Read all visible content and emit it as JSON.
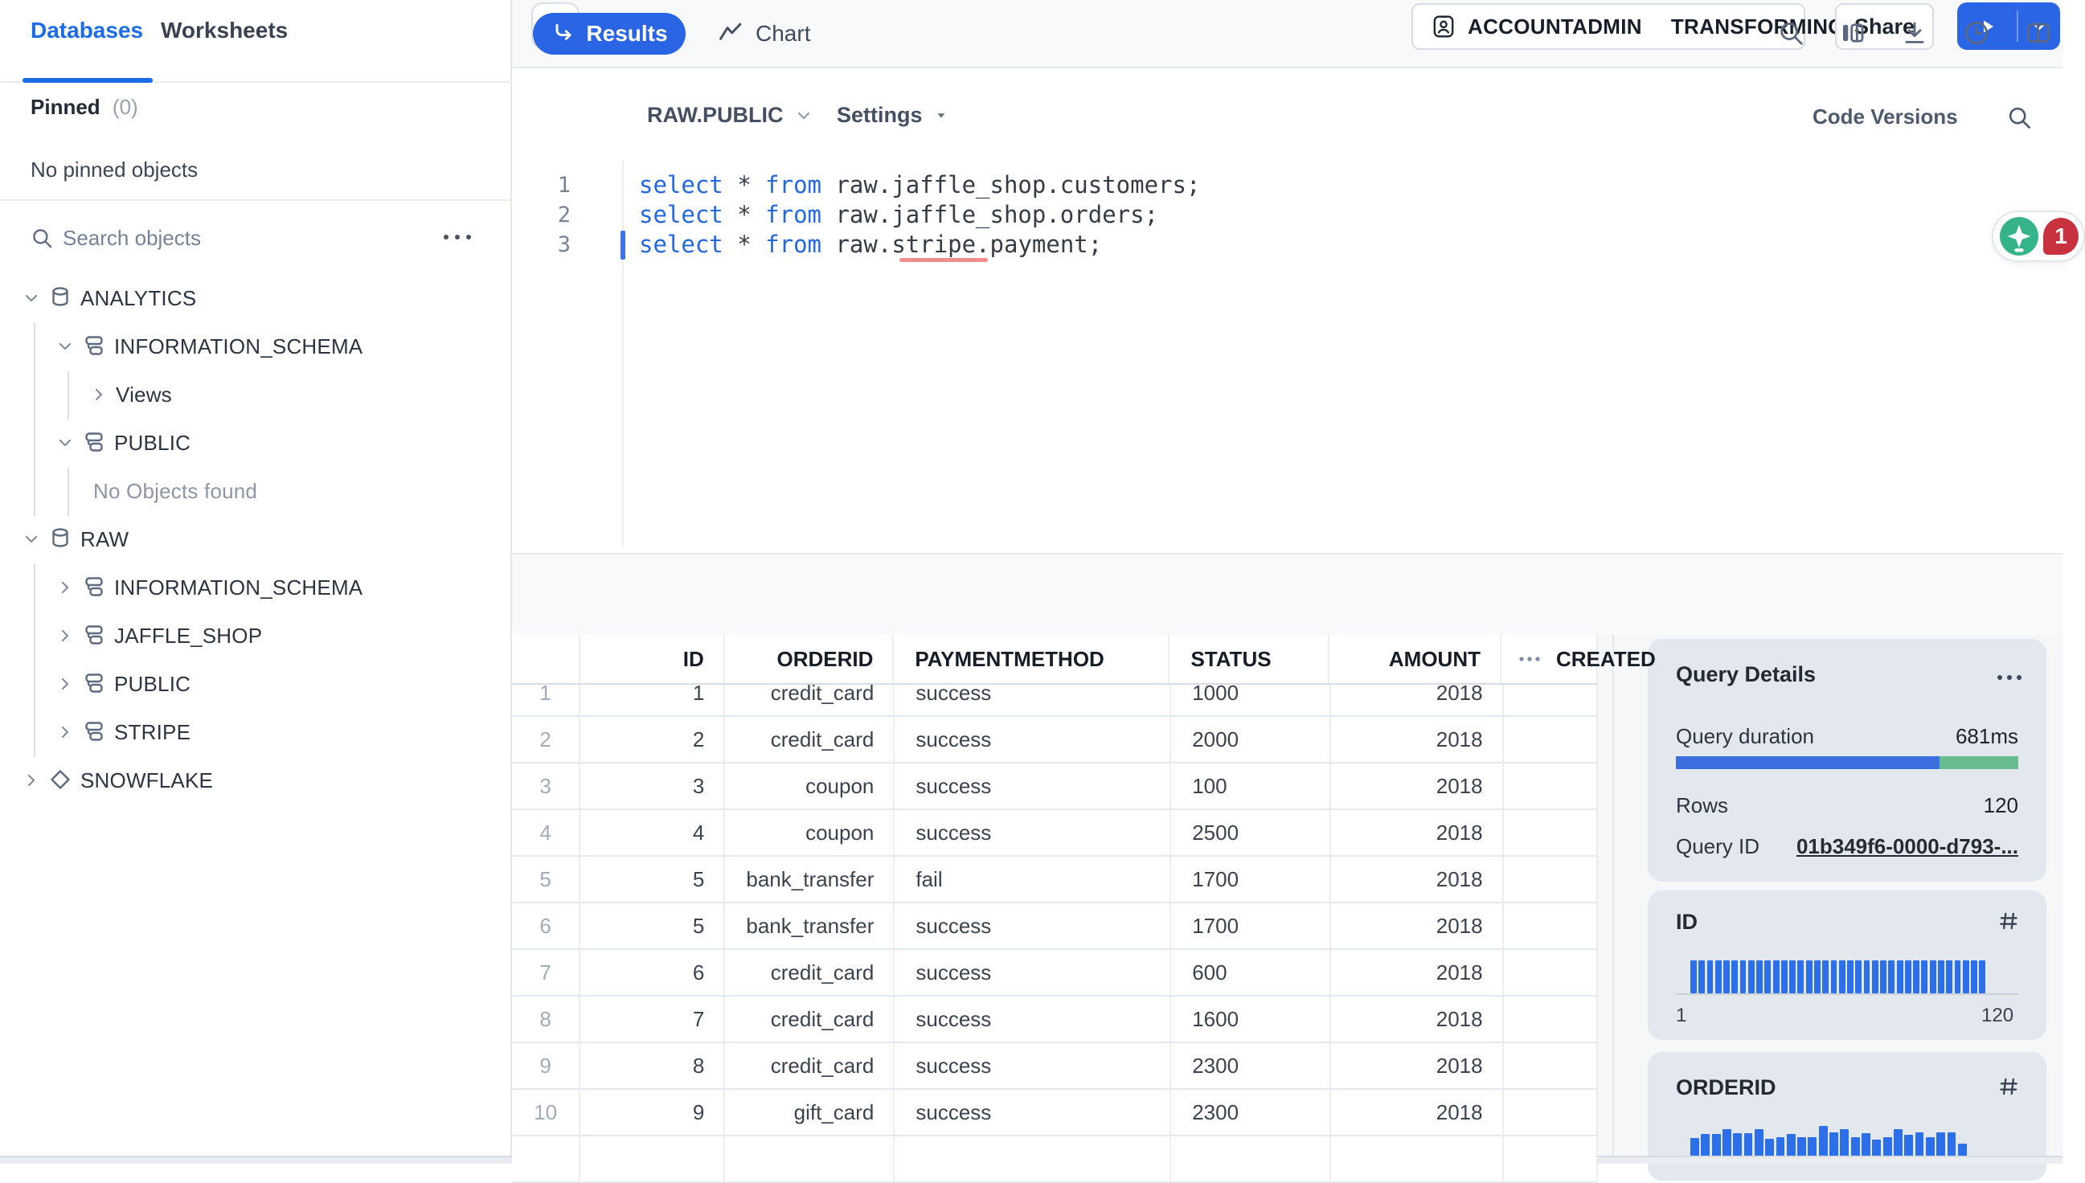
{
  "sidebar": {
    "tabs": [
      {
        "label": "Databases"
      },
      {
        "label": "Worksheets"
      }
    ],
    "active_tab": "Databases",
    "pinned_label": "Pinned",
    "pinned_count": "(0)",
    "pinned_empty": "No pinned objects",
    "search_placeholder": "Search objects",
    "tree": [
      {
        "label": "ANALYTICS",
        "icon": "database",
        "level": 0,
        "state": "expanded"
      },
      {
        "label": "INFORMATION_SCHEMA",
        "icon": "schema",
        "level": 1,
        "state": "expanded"
      },
      {
        "label": "Views",
        "icon": "",
        "level": 2,
        "state": "collapsed"
      },
      {
        "label": "PUBLIC",
        "icon": "schema",
        "level": 1,
        "state": "expanded"
      },
      {
        "label": "No Objects found",
        "icon": "",
        "level": 2,
        "state": "none",
        "muted": true
      },
      {
        "label": "RAW",
        "icon": "database",
        "level": 0,
        "state": "expanded"
      },
      {
        "label": "INFORMATION_SCHEMA",
        "icon": "schema",
        "level": 1,
        "state": "collapsed"
      },
      {
        "label": "JAFFLE_SHOP",
        "icon": "schema",
        "level": 1,
        "state": "collapsed"
      },
      {
        "label": "PUBLIC",
        "icon": "schema",
        "level": 1,
        "state": "collapsed"
      },
      {
        "label": "STRIPE",
        "icon": "schema",
        "level": 1,
        "state": "collapsed"
      },
      {
        "label": "SNOWFLAKE",
        "icon": "snowflake",
        "level": 0,
        "state": "collapsed"
      }
    ]
  },
  "topbar": {
    "role": "ACCOUNTADMIN",
    "warehouse": "TRANSFORMING",
    "share_label": "Share"
  },
  "worksheet": {
    "context": "RAW.PUBLIC",
    "settings_label": "Settings",
    "code_versions_label": "Code Versions",
    "notification_count": "1"
  },
  "editor": {
    "lines": [
      {
        "no": "1",
        "tokens": [
          {
            "t": "kw",
            "s": "select"
          },
          {
            "t": "pl",
            "s": " * "
          },
          {
            "t": "kw",
            "s": "from"
          },
          {
            "t": "pl",
            "s": " raw.jaffle_shop.customers;"
          }
        ]
      },
      {
        "no": "2",
        "tokens": [
          {
            "t": "kw",
            "s": "select"
          },
          {
            "t": "pl",
            "s": " * "
          },
          {
            "t": "kw",
            "s": "from"
          },
          {
            "t": "pl",
            "s": " raw.jaffle_shop.orders;"
          }
        ]
      },
      {
        "no": "3",
        "tokens": [
          {
            "t": "kw",
            "s": "select"
          },
          {
            "t": "pl",
            "s": " * "
          },
          {
            "t": "kw",
            "s": "from"
          },
          {
            "t": "pl",
            "s": " raw."
          },
          {
            "t": "err",
            "s": "stripe"
          },
          {
            "t": "pl",
            "s": ".payment;"
          }
        ]
      }
    ]
  },
  "results": {
    "tab_results": "Results",
    "tab_chart": "Chart",
    "table": {
      "columns": [
        {
          "label": "",
          "align": "center"
        },
        {
          "label": "ID",
          "align": "right"
        },
        {
          "label": "ORDERID",
          "align": "right"
        },
        {
          "label": "PAYMENTMETHOD",
          "align": "left"
        },
        {
          "label": "STATUS",
          "align": "left"
        },
        {
          "label": "AMOUNT",
          "align": "right"
        },
        {
          "label": "CREATED",
          "align": "left",
          "clipped": true
        }
      ],
      "rows": [
        [
          "1",
          "1",
          "credit_card",
          "success",
          "1000",
          "2018"
        ],
        [
          "2",
          "2",
          "credit_card",
          "success",
          "2000",
          "2018"
        ],
        [
          "3",
          "3",
          "coupon",
          "success",
          "100",
          "2018"
        ],
        [
          "4",
          "4",
          "coupon",
          "success",
          "2500",
          "2018"
        ],
        [
          "5",
          "5",
          "bank_transfer",
          "fail",
          "1700",
          "2018"
        ],
        [
          "6",
          "5",
          "bank_transfer",
          "success",
          "1700",
          "2018"
        ],
        [
          "7",
          "6",
          "credit_card",
          "success",
          "600",
          "2018"
        ],
        [
          "8",
          "7",
          "credit_card",
          "success",
          "1600",
          "2018"
        ],
        [
          "9",
          "8",
          "credit_card",
          "success",
          "2300",
          "2018"
        ],
        [
          "10",
          "9",
          "gift_card",
          "success",
          "2300",
          "2018"
        ]
      ]
    }
  },
  "query_details": {
    "title": "Query Details",
    "duration_label": "Query duration",
    "duration_value": "681ms",
    "duration_split": {
      "blue": 0.77,
      "green": 0.23
    },
    "rows_label": "Rows",
    "rows_value": "120",
    "query_id_label": "Query ID",
    "query_id_value": "01b349f6-0000-d793-..."
  },
  "chart_data": [
    {
      "type": "histogram",
      "title": "ID",
      "x_min_label": "1",
      "x_max_label": "120",
      "values": [
        1,
        1,
        1,
        1,
        1,
        1,
        1,
        1,
        1,
        1,
        1,
        1,
        1,
        1,
        1,
        1,
        1,
        1,
        1,
        1,
        1,
        1,
        1,
        1,
        1,
        1,
        1,
        1,
        1,
        1,
        1,
        1,
        1,
        1,
        1,
        1
      ]
    },
    {
      "type": "histogram",
      "title": "ORDERID",
      "values": [
        0.62,
        0.74,
        0.74,
        0.9,
        0.78,
        0.78,
        0.9,
        0.6,
        0.65,
        0.76,
        0.65,
        0.65,
        1,
        0.81,
        0.9,
        0.65,
        0.78,
        0.58,
        0.65,
        0.9,
        0.72,
        0.81,
        0.65,
        0.81,
        0.81,
        0.44
      ]
    }
  ],
  "colors": {
    "accent_blue": "#1a6ce7",
    "button_blue": "#2a65e5",
    "histogram_bar": "#2d6fe9",
    "progress_blue": "#3b6fe0",
    "progress_green": "#67bd8e",
    "keyword_blue": "#2268e0",
    "error_underline": "#ef8c8c",
    "badge_red": "#c8313e",
    "bulb_green": "#35b48a",
    "status_dot_green": "#4fc28f"
  }
}
